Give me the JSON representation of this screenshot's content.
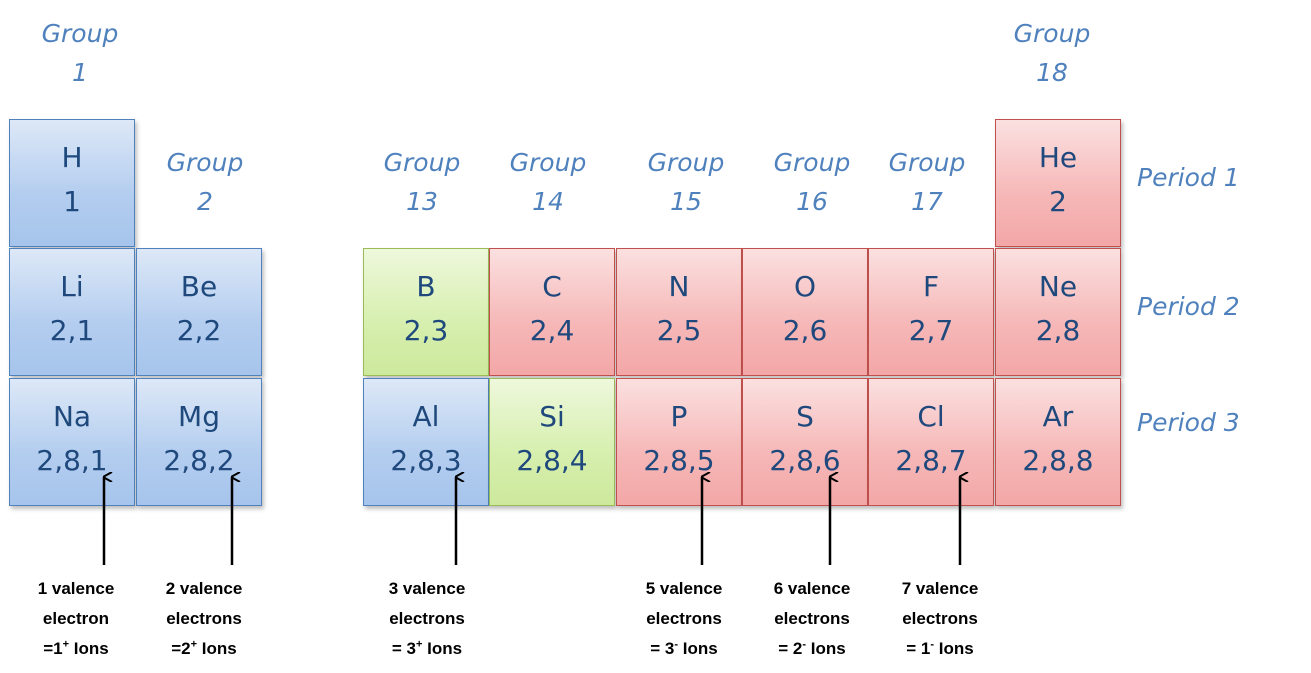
{
  "groups": [
    {
      "id": "g1",
      "word": "Group",
      "num": "1"
    },
    {
      "id": "g2",
      "word": "Group",
      "num": "2"
    },
    {
      "id": "g13",
      "word": "Group",
      "num": "13"
    },
    {
      "id": "g14",
      "word": "Group",
      "num": "14"
    },
    {
      "id": "g15",
      "word": "Group",
      "num": "15"
    },
    {
      "id": "g16",
      "word": "Group",
      "num": "16"
    },
    {
      "id": "g17",
      "word": "Group",
      "num": "17"
    },
    {
      "id": "g18",
      "word": "Group",
      "num": "18"
    }
  ],
  "periods": [
    {
      "id": "p1",
      "label": "Period 1"
    },
    {
      "id": "p2",
      "label": "Period 2"
    },
    {
      "id": "p3",
      "label": "Period 3"
    }
  ],
  "elements": [
    {
      "symbol": "H",
      "config": "1",
      "color": "blue"
    },
    {
      "symbol": "He",
      "config": "2",
      "color": "red"
    },
    {
      "symbol": "Li",
      "config": "2,1",
      "color": "blue"
    },
    {
      "symbol": "Be",
      "config": "2,2",
      "color": "blue"
    },
    {
      "symbol": "B",
      "config": "2,3",
      "color": "green"
    },
    {
      "symbol": "C",
      "config": "2,4",
      "color": "red"
    },
    {
      "symbol": "N",
      "config": "2,5",
      "color": "red"
    },
    {
      "symbol": "O",
      "config": "2,6",
      "color": "red"
    },
    {
      "symbol": "F",
      "config": "2,7",
      "color": "red"
    },
    {
      "symbol": "Ne",
      "config": "2,8",
      "color": "red"
    },
    {
      "symbol": "Na",
      "config": "2,8,1",
      "color": "blue"
    },
    {
      "symbol": "Mg",
      "config": "2,8,2",
      "color": "blue"
    },
    {
      "symbol": "Al",
      "config": "2,8,3",
      "color": "blue"
    },
    {
      "symbol": "Si",
      "config": "2,8,4",
      "color": "green"
    },
    {
      "symbol": "P",
      "config": "2,8,5",
      "color": "red"
    },
    {
      "symbol": "S",
      "config": "2,8,6",
      "color": "red"
    },
    {
      "symbol": "Cl",
      "config": "2,8,7",
      "color": "red"
    },
    {
      "symbol": "Ar",
      "config": "2,8,8",
      "color": "red"
    }
  ],
  "notes": [
    {
      "line1": "1 valence",
      "line2": "electron",
      "prefix": "=1",
      "sup": "+",
      "suffix": " Ions"
    },
    {
      "line1": "2 valence",
      "line2": "electrons",
      "prefix": "=2",
      "sup": "+",
      "suffix": " Ions"
    },
    {
      "line1": "3 valence",
      "line2": "electrons",
      "prefix": "= 3",
      "sup": "+",
      "suffix": " Ions"
    },
    {
      "line1": "5 valence",
      "line2": "electrons",
      "prefix": "= 3",
      "sup": "-",
      "suffix": " Ions"
    },
    {
      "line1": "6 valence",
      "line2": "electrons",
      "prefix": "= 2",
      "sup": "-",
      "suffix": " Ions"
    },
    {
      "line1": "7 valence",
      "line2": "electrons",
      "prefix": "= 1",
      "sup": "-",
      "suffix": " Ions"
    }
  ],
  "colors": {
    "label_blue": "#4f81bd",
    "text_dark_blue": "#1f497d",
    "blue_cell": "#a6c4ec",
    "red_cell": "#f3a7a7",
    "green_cell": "#cde99c"
  }
}
